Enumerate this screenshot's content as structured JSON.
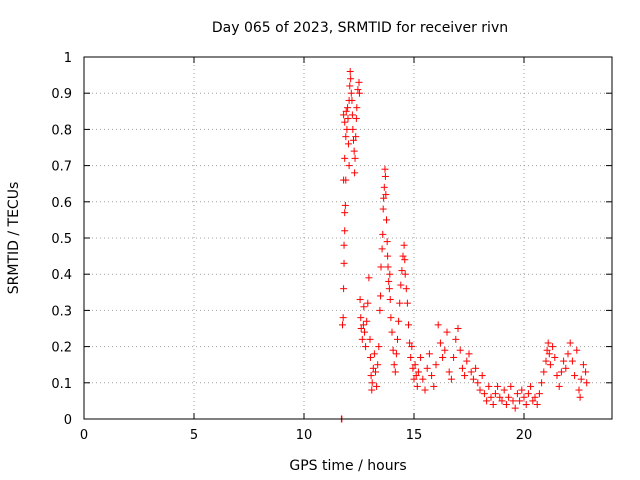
{
  "chart_data": {
    "type": "scatter",
    "title": "Day 065 of 2023, SRMTID for receiver rivn",
    "xlabel": "GPS time / hours",
    "ylabel": "SRMTID / TECUs",
    "xlim": [
      0,
      24
    ],
    "ylim": [
      0,
      1
    ],
    "xticks": [
      0,
      5,
      10,
      15,
      20
    ],
    "xtick_labels": [
      "0",
      "5",
      "10",
      "15",
      "20"
    ],
    "yticks": [
      0,
      0.1,
      0.2,
      0.3,
      0.4,
      0.5,
      0.6,
      0.7,
      0.8,
      0.9,
      1
    ],
    "ytick_labels": [
      "0",
      "0.1",
      "0.2",
      "0.3",
      "0.4",
      "0.5",
      "0.6",
      "0.7",
      "0.8",
      "0.9",
      "1"
    ],
    "grid": true,
    "marker": "+",
    "marker_color": "#ff0000",
    "series": [
      {
        "name": "rivn",
        "points": [
          [
            11.7,
            0.0
          ],
          [
            11.72,
            0.0
          ],
          [
            11.75,
            0.26
          ],
          [
            11.78,
            0.28
          ],
          [
            11.8,
            0.36
          ],
          [
            11.82,
            0.43
          ],
          [
            11.82,
            0.48
          ],
          [
            11.85,
            0.52
          ],
          [
            11.85,
            0.57
          ],
          [
            11.88,
            0.59
          ],
          [
            11.8,
            0.66
          ],
          [
            11.9,
            0.66
          ],
          [
            11.85,
            0.72
          ],
          [
            11.9,
            0.78
          ],
          [
            11.85,
            0.82
          ],
          [
            11.8,
            0.84
          ],
          [
            11.92,
            0.85
          ],
          [
            11.95,
            0.8
          ],
          [
            11.98,
            0.86
          ],
          [
            12.0,
            0.83
          ],
          [
            12.02,
            0.76
          ],
          [
            12.05,
            0.7
          ],
          [
            12.05,
            0.88
          ],
          [
            12.08,
            0.92
          ],
          [
            12.1,
            0.96
          ],
          [
            12.12,
            0.94
          ],
          [
            12.15,
            0.9
          ],
          [
            12.18,
            0.88
          ],
          [
            12.2,
            0.84
          ],
          [
            12.22,
            0.8
          ],
          [
            12.25,
            0.77
          ],
          [
            12.28,
            0.74
          ],
          [
            12.3,
            0.68
          ],
          [
            12.32,
            0.72
          ],
          [
            12.35,
            0.78
          ],
          [
            12.38,
            0.83
          ],
          [
            12.4,
            0.86
          ],
          [
            12.45,
            0.91
          ],
          [
            12.5,
            0.93
          ],
          [
            12.52,
            0.9
          ],
          [
            12.55,
            0.33
          ],
          [
            12.58,
            0.28
          ],
          [
            12.6,
            0.25
          ],
          [
            12.65,
            0.22
          ],
          [
            12.7,
            0.26
          ],
          [
            12.72,
            0.31
          ],
          [
            12.75,
            0.24
          ],
          [
            12.8,
            0.2
          ],
          [
            12.85,
            0.27
          ],
          [
            12.9,
            0.32
          ],
          [
            12.95,
            0.39
          ],
          [
            13.0,
            0.22
          ],
          [
            13.02,
            0.17
          ],
          [
            13.05,
            0.12
          ],
          [
            13.08,
            0.08
          ],
          [
            13.1,
            0.1
          ],
          [
            13.15,
            0.14
          ],
          [
            13.2,
            0.18
          ],
          [
            13.25,
            0.13
          ],
          [
            13.3,
            0.09
          ],
          [
            13.35,
            0.15
          ],
          [
            13.4,
            0.2
          ],
          [
            13.45,
            0.3
          ],
          [
            13.48,
            0.34
          ],
          [
            13.5,
            0.42
          ],
          [
            13.55,
            0.47
          ],
          [
            13.58,
            0.51
          ],
          [
            13.6,
            0.58
          ],
          [
            13.62,
            0.61
          ],
          [
            13.65,
            0.64
          ],
          [
            13.68,
            0.69
          ],
          [
            13.7,
            0.67
          ],
          [
            13.72,
            0.62
          ],
          [
            13.75,
            0.55
          ],
          [
            13.78,
            0.49
          ],
          [
            13.8,
            0.45
          ],
          [
            13.82,
            0.42
          ],
          [
            13.85,
            0.38
          ],
          [
            13.88,
            0.36
          ],
          [
            13.9,
            0.4
          ],
          [
            13.92,
            0.33
          ],
          [
            13.95,
            0.28
          ],
          [
            14.0,
            0.24
          ],
          [
            14.05,
            0.19
          ],
          [
            14.1,
            0.15
          ],
          [
            14.15,
            0.13
          ],
          [
            14.2,
            0.18
          ],
          [
            14.25,
            0.22
          ],
          [
            14.3,
            0.27
          ],
          [
            14.35,
            0.32
          ],
          [
            14.4,
            0.37
          ],
          [
            14.45,
            0.41
          ],
          [
            14.5,
            0.45
          ],
          [
            14.55,
            0.48
          ],
          [
            14.58,
            0.44
          ],
          [
            14.6,
            0.4
          ],
          [
            14.65,
            0.36
          ],
          [
            14.7,
            0.32
          ],
          [
            14.75,
            0.26
          ],
          [
            14.8,
            0.21
          ],
          [
            14.85,
            0.17
          ],
          [
            14.9,
            0.2
          ],
          [
            14.95,
            0.14
          ],
          [
            15.0,
            0.11
          ],
          [
            15.05,
            0.15
          ],
          [
            15.1,
            0.12
          ],
          [
            15.15,
            0.09
          ],
          [
            15.2,
            0.13
          ],
          [
            15.3,
            0.17
          ],
          [
            15.4,
            0.11
          ],
          [
            15.5,
            0.08
          ],
          [
            15.6,
            0.14
          ],
          [
            15.7,
            0.18
          ],
          [
            15.8,
            0.12
          ],
          [
            15.9,
            0.09
          ],
          [
            16.0,
            0.15
          ],
          [
            16.1,
            0.26
          ],
          [
            16.2,
            0.21
          ],
          [
            16.3,
            0.17
          ],
          [
            16.4,
            0.19
          ],
          [
            16.5,
            0.24
          ],
          [
            16.6,
            0.13
          ],
          [
            16.7,
            0.11
          ],
          [
            16.8,
            0.17
          ],
          [
            16.9,
            0.22
          ],
          [
            17.0,
            0.25
          ],
          [
            17.1,
            0.19
          ],
          [
            17.2,
            0.14
          ],
          [
            17.3,
            0.12
          ],
          [
            17.4,
            0.16
          ],
          [
            17.5,
            0.18
          ],
          [
            17.6,
            0.13
          ],
          [
            17.7,
            0.11
          ],
          [
            17.8,
            0.14
          ],
          [
            17.9,
            0.1
          ],
          [
            18.0,
            0.08
          ],
          [
            18.1,
            0.12
          ],
          [
            18.2,
            0.07
          ],
          [
            18.3,
            0.05
          ],
          [
            18.4,
            0.09
          ],
          [
            18.5,
            0.06
          ],
          [
            18.6,
            0.04
          ],
          [
            18.7,
            0.07
          ],
          [
            18.8,
            0.09
          ],
          [
            18.9,
            0.06
          ],
          [
            19.0,
            0.05
          ],
          [
            19.1,
            0.08
          ],
          [
            19.2,
            0.04
          ],
          [
            19.3,
            0.06
          ],
          [
            19.4,
            0.09
          ],
          [
            19.5,
            0.05
          ],
          [
            19.6,
            0.03
          ],
          [
            19.7,
            0.07
          ],
          [
            19.8,
            0.05
          ],
          [
            19.9,
            0.08
          ],
          [
            20.0,
            0.06
          ],
          [
            20.1,
            0.04
          ],
          [
            20.2,
            0.07
          ],
          [
            20.3,
            0.09
          ],
          [
            20.4,
            0.05
          ],
          [
            20.5,
            0.06
          ],
          [
            20.6,
            0.04
          ],
          [
            20.7,
            0.07
          ],
          [
            20.8,
            0.1
          ],
          [
            20.9,
            0.13
          ],
          [
            21.0,
            0.16
          ],
          [
            21.05,
            0.19
          ],
          [
            21.1,
            0.21
          ],
          [
            21.15,
            0.18
          ],
          [
            21.2,
            0.15
          ],
          [
            21.3,
            0.2
          ],
          [
            21.4,
            0.17
          ],
          [
            21.5,
            0.12
          ],
          [
            21.6,
            0.09
          ],
          [
            21.7,
            0.13
          ],
          [
            21.8,
            0.16
          ],
          [
            21.9,
            0.14
          ],
          [
            22.0,
            0.18
          ],
          [
            22.1,
            0.21
          ],
          [
            22.2,
            0.16
          ],
          [
            22.3,
            0.12
          ],
          [
            22.4,
            0.19
          ],
          [
            22.5,
            0.08
          ],
          [
            22.55,
            0.06
          ],
          [
            22.6,
            0.11
          ],
          [
            22.7,
            0.15
          ],
          [
            22.8,
            0.13
          ],
          [
            22.85,
            0.1
          ]
        ]
      }
    ]
  }
}
